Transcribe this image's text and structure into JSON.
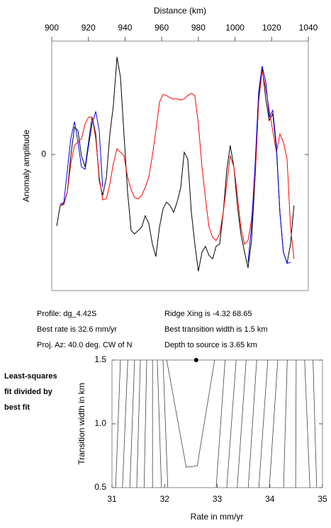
{
  "chart_data": [
    {
      "type": "line",
      "xlabel": "Distance (km)",
      "ylabel": "Anomaly amplitude",
      "xlim": [
        900,
        1040
      ],
      "xticks": [
        900,
        920,
        940,
        960,
        980,
        1000,
        1020,
        1040
      ],
      "ylim": [
        -1.2,
        1.0
      ],
      "yticks": [
        0
      ],
      "x": [
        902.7,
        904.6,
        906.6,
        908.5,
        910.4,
        912.4,
        914.3,
        916.2,
        918.2,
        920.1,
        922.0,
        924.0,
        925.9,
        927.8,
        929.8,
        931.7,
        933.6,
        935.6,
        937.5,
        939.4,
        941.4,
        943.3,
        945.2,
        947.2,
        949.1,
        951.0,
        953.0,
        954.9,
        956.8,
        958.8,
        960.7,
        962.6,
        964.6,
        966.5,
        968.4,
        970.4,
        972.3,
        974.2,
        976.2,
        978.1,
        980.0,
        982.0,
        983.9,
        985.8,
        987.8,
        989.7,
        991.6,
        993.6,
        995.5,
        997.4,
        999.4,
        1001.3,
        1003.2,
        1005.2,
        1007.1,
        1009.0,
        1011.0,
        1012.9,
        1014.8,
        1016.8,
        1018.7,
        1020.6,
        1022.6,
        1024.5,
        1026.4,
        1028.4,
        1030.3,
        1032.2
      ],
      "series": [
        {
          "color": "#000000",
          "values": [
            -0.63,
            -0.45,
            -0.44,
            -0.33,
            -0.01,
            0.24,
            0.21,
            -0.01,
            -0.11,
            0.11,
            0.33,
            0.18,
            -0.23,
            -0.36,
            -0.2,
            0.18,
            0.43,
            0.86,
            0.68,
            0.18,
            -0.33,
            -0.67,
            -0.7,
            -0.67,
            -0.64,
            -0.54,
            -0.61,
            -0.79,
            -0.9,
            -0.64,
            -0.48,
            -0.42,
            -0.45,
            -0.51,
            -0.42,
            -0.29,
            0.02,
            -0.04,
            -0.51,
            -0.79,
            -1.03,
            -0.86,
            -0.81,
            -0.89,
            -0.92,
            -0.81,
            -0.79,
            -0.51,
            -0.14,
            0.08,
            -0.11,
            -0.45,
            -0.7,
            -0.86,
            -1.0,
            -0.76,
            -0.2,
            0.49,
            0.77,
            0.49,
            0.3,
            0.36,
            0.05,
            -0.51,
            -0.86,
            -0.96,
            -0.79,
            -0.45
          ]
        },
        {
          "color": "#ff0000",
          "values": [
            null,
            -0.45,
            -0.43,
            -0.33,
            -0.08,
            0.08,
            0.11,
            0.14,
            0.27,
            0.33,
            0.33,
            0.14,
            -0.2,
            -0.4,
            -0.39,
            -0.26,
            -0.08,
            0.05,
            0.02,
            -0.01,
            -0.2,
            -0.31,
            -0.38,
            -0.39,
            -0.36,
            -0.29,
            -0.2,
            -0.01,
            0.21,
            0.46,
            0.53,
            0.52,
            0.5,
            0.49,
            0.49,
            0.48,
            0.49,
            0.52,
            0.54,
            0.52,
            0.27,
            -0.11,
            -0.39,
            -0.64,
            -0.73,
            -0.76,
            -0.7,
            -0.51,
            -0.26,
            -0.01,
            -0.11,
            -0.36,
            -0.64,
            -0.79,
            -0.76,
            -0.58,
            -0.2,
            0.46,
            0.74,
            0.58,
            0.39,
            0.21,
            0.02,
            0.18,
            0.11,
            -0.04,
            -0.64,
            -0.92
          ]
        },
        {
          "color": "#0000ff",
          "values": [
            null,
            -0.44,
            -0.42,
            -0.14,
            0.14,
            0.29,
            0.11,
            -0.11,
            -0.13,
            0.08,
            0.27,
            0.38,
            0.21,
            -0.29,
            null,
            null,
            null,
            null,
            null,
            null,
            null,
            null,
            null,
            null,
            null,
            null,
            null,
            null,
            null,
            null,
            null,
            null,
            null,
            null,
            null,
            null,
            null,
            null,
            null,
            null,
            null,
            null,
            null,
            null,
            null,
            null,
            null,
            null,
            null,
            null,
            null,
            null,
            null,
            null,
            -0.95,
            -0.64,
            -0.08,
            0.55,
            0.78,
            0.64,
            0.33,
            0.39,
            0.08,
            -0.51,
            -0.86,
            -0.96,
            -0.95,
            null
          ]
        }
      ]
    },
    {
      "type": "contour",
      "xlabel": "Rate in mm/yr",
      "ylabel": "Transition width in km",
      "xlim": [
        31,
        35
      ],
      "xticks": [
        31,
        32,
        33,
        34,
        35
      ],
      "ylim": [
        0.5,
        1.5
      ],
      "yticks": [
        0.5,
        {
          "value": 1,
          "label": "1.0"
        },
        1.5
      ],
      "color": "#444444",
      "contours": [
        {
          "x": [
            31.16,
            31.07
          ],
          "y": [
            1.5,
            0.5
          ]
        },
        {
          "x": [
            31.3,
            31.2
          ],
          "y": [
            1.5,
            0.5
          ]
        },
        {
          "x": [
            31.43,
            31.34
          ],
          "y": [
            1.5,
            0.5
          ]
        },
        {
          "x": [
            31.54,
            31.47
          ],
          "y": [
            1.5,
            0.5
          ]
        },
        {
          "x": [
            31.66,
            31.61
          ],
          "y": [
            1.5,
            0.5
          ]
        },
        {
          "x": [
            31.77,
            31.77
          ],
          "y": [
            1.5,
            0.5
          ]
        },
        {
          "x": [
            31.86,
            31.94
          ],
          "y": [
            1.5,
            0.5
          ]
        },
        {
          "x": [
            31.97,
            32.06
          ],
          "y": [
            1.5,
            0.5
          ]
        },
        {
          "x": [
            32.04,
            32.41,
            32.62,
            32.95
          ],
          "y": [
            1.5,
            0.66,
            0.67,
            1.5
          ]
        },
        {
          "x": [
            33.15,
            32.98
          ],
          "y": [
            1.5,
            0.5
          ]
        },
        {
          "x": [
            33.36,
            33.18
          ],
          "y": [
            1.5,
            0.5
          ]
        },
        {
          "x": [
            33.55,
            33.38
          ],
          "y": [
            1.5,
            0.5
          ]
        },
        {
          "x": [
            33.75,
            33.59
          ],
          "y": [
            1.5,
            0.5
          ]
        },
        {
          "x": [
            33.96,
            33.79
          ],
          "y": [
            1.5,
            0.5
          ]
        },
        {
          "x": [
            34.15,
            33.99
          ],
          "y": [
            1.5,
            0.5
          ]
        },
        {
          "x": [
            34.33,
            34.26
          ],
          "y": [
            1.5,
            0.5
          ]
        },
        {
          "x": [
            34.5,
            34.49
          ],
          "y": [
            1.5,
            0.5
          ]
        },
        {
          "x": [
            34.66,
            34.76
          ],
          "y": [
            1.5,
            0.5
          ]
        },
        {
          "x": [
            34.82,
            34.89
          ],
          "y": [
            1.5,
            0.5
          ]
        }
      ],
      "best_fit": {
        "x": 32.6,
        "y": 1.5
      }
    }
  ],
  "profile_info": {
    "left": [
      "Profile: dg_4.42S",
      "Best rate is 32.6 mm/yr",
      "Proj. Az: 40.0 deg. CW of N"
    ],
    "right": [
      "Ridge Xing is -4.32 68.65",
      "Best transition width is 1.5 km",
      "Depth to source is   3.65 km"
    ]
  },
  "side_note": [
    "Least-squares",
    "fit divided by",
    "best fit"
  ]
}
